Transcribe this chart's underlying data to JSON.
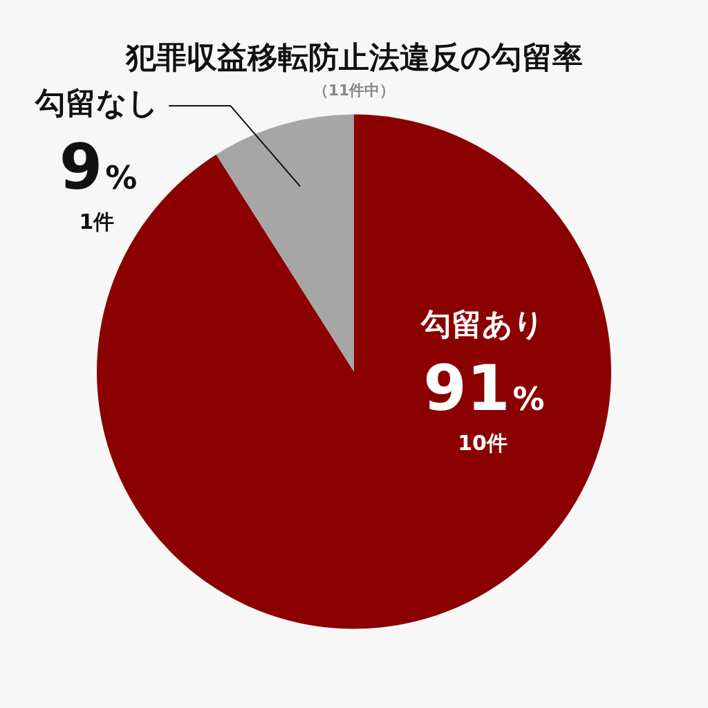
{
  "chart_data": {
    "type": "pie",
    "title": "犯罪収益移転防止法違反の勾留率",
    "subtitle": "（11件中）",
    "categories": [
      "勾留あり",
      "勾留なし"
    ],
    "values": [
      91,
      9
    ],
    "colors": [
      "#8b0000",
      "#a6a6a6"
    ],
    "value_labels": [
      "91%",
      "9%"
    ],
    "annotations": [
      "10件",
      "1件"
    ],
    "legend": false
  }
}
